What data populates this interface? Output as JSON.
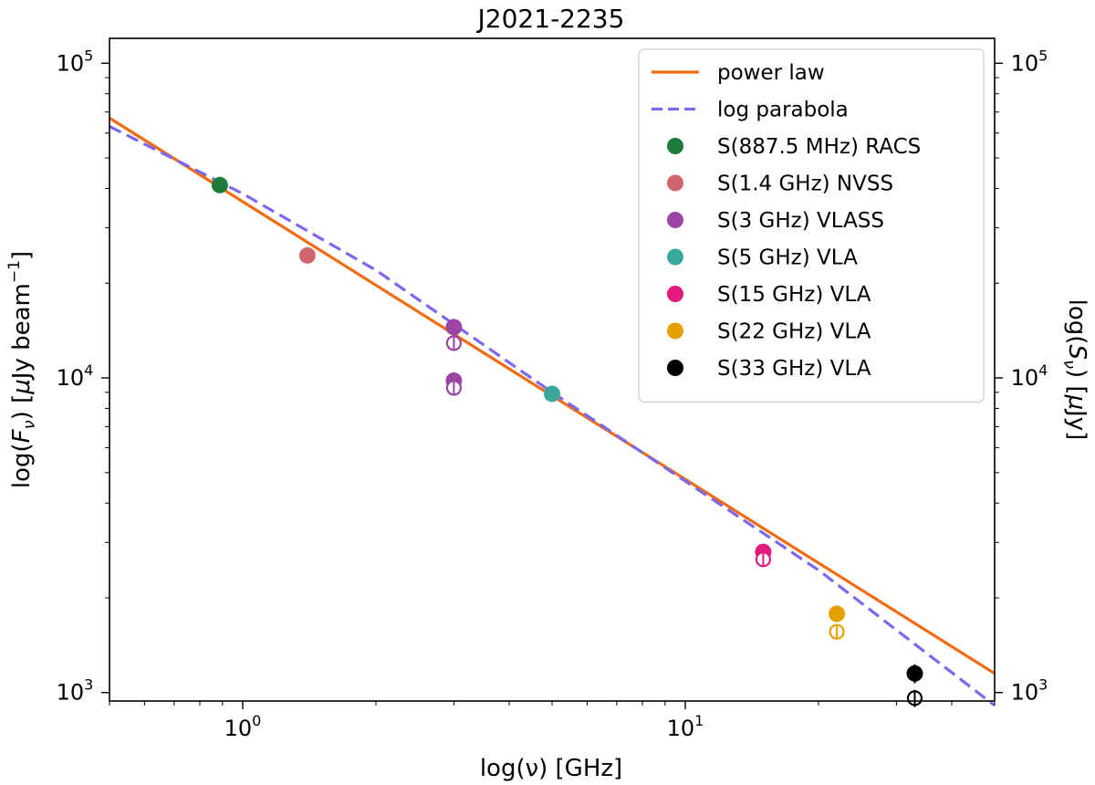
{
  "chart_data": {
    "type": "scatter",
    "title": "J2021-2235",
    "xlabel": "log(ν) [GHz]",
    "ylabel_left_parts": [
      "log(",
      "F",
      "ν",
      ") [",
      "μ",
      "Jy beam",
      "−1",
      "]"
    ],
    "ylabel_right_parts": [
      "log(",
      "S",
      "ν",
      ") [",
      "μ",
      "Jy]"
    ],
    "xscale": "log",
    "yscale": "log",
    "xlim": [
      0.5,
      50
    ],
    "ylim": [
      940,
      120000
    ],
    "x_major_ticks": [
      {
        "base": "10",
        "exp": "0",
        "value": 1
      },
      {
        "base": "10",
        "exp": "1",
        "value": 10
      }
    ],
    "y_major_ticks": [
      {
        "base": "10",
        "exp": "3",
        "value": 1000
      },
      {
        "base": "10",
        "exp": "4",
        "value": 10000
      },
      {
        "base": "10",
        "exp": "5",
        "value": 100000
      }
    ],
    "legend_position": "top-right",
    "lines": [
      {
        "name": "power law",
        "color": "#f26b0f",
        "style": "solid",
        "x": [
          0.5,
          50
        ],
        "y": [
          67000,
          1150
        ]
      },
      {
        "name": "log parabola",
        "color": "#7b68ee",
        "style": "dashed",
        "x": [
          0.5,
          1,
          2,
          5,
          10,
          20,
          50
        ],
        "y": [
          63000,
          38500,
          22000,
          9000,
          4700,
          2450,
          910
        ]
      }
    ],
    "series": [
      {
        "name": "S(887.5 MHz) RACS",
        "color": "#1e7b3a",
        "points": [
          {
            "x": 0.8875,
            "y": 41000,
            "fill": "filled"
          }
        ]
      },
      {
        "name": "S(1.4 GHz) NVSS",
        "color": "#d0656e",
        "points": [
          {
            "x": 1.4,
            "y": 24500,
            "fill": "filled"
          }
        ]
      },
      {
        "name": "S(3 GHz) VLASS",
        "color": "#9b44a4",
        "points": [
          {
            "x": 3,
            "y": 14500,
            "fill": "filled"
          },
          {
            "x": 3,
            "y": 12900,
            "fill": "open"
          },
          {
            "x": 3,
            "y": 9800,
            "fill": "filled"
          },
          {
            "x": 3,
            "y": 9300,
            "fill": "open"
          }
        ]
      },
      {
        "name": "S(5 GHz) VLA",
        "color": "#3aa79d",
        "points": [
          {
            "x": 5,
            "y": 8900,
            "fill": "filled"
          }
        ]
      },
      {
        "name": "S(15 GHz) VLA",
        "color": "#e4197d",
        "points": [
          {
            "x": 15,
            "y": 2800,
            "fill": "filled"
          },
          {
            "x": 15,
            "y": 2650,
            "fill": "open"
          }
        ]
      },
      {
        "name": "S(22 GHz) VLA",
        "color": "#e69f00",
        "points": [
          {
            "x": 22,
            "y": 1780,
            "fill": "filled"
          },
          {
            "x": 22,
            "y": 1560,
            "fill": "open"
          }
        ]
      },
      {
        "name": "S(33 GHz) VLA",
        "color": "#000000",
        "points": [
          {
            "x": 33,
            "y": 1150,
            "fill": "filled",
            "yerr": 80
          },
          {
            "x": 33,
            "y": 960,
            "fill": "open",
            "yerr": 60
          }
        ]
      }
    ]
  }
}
